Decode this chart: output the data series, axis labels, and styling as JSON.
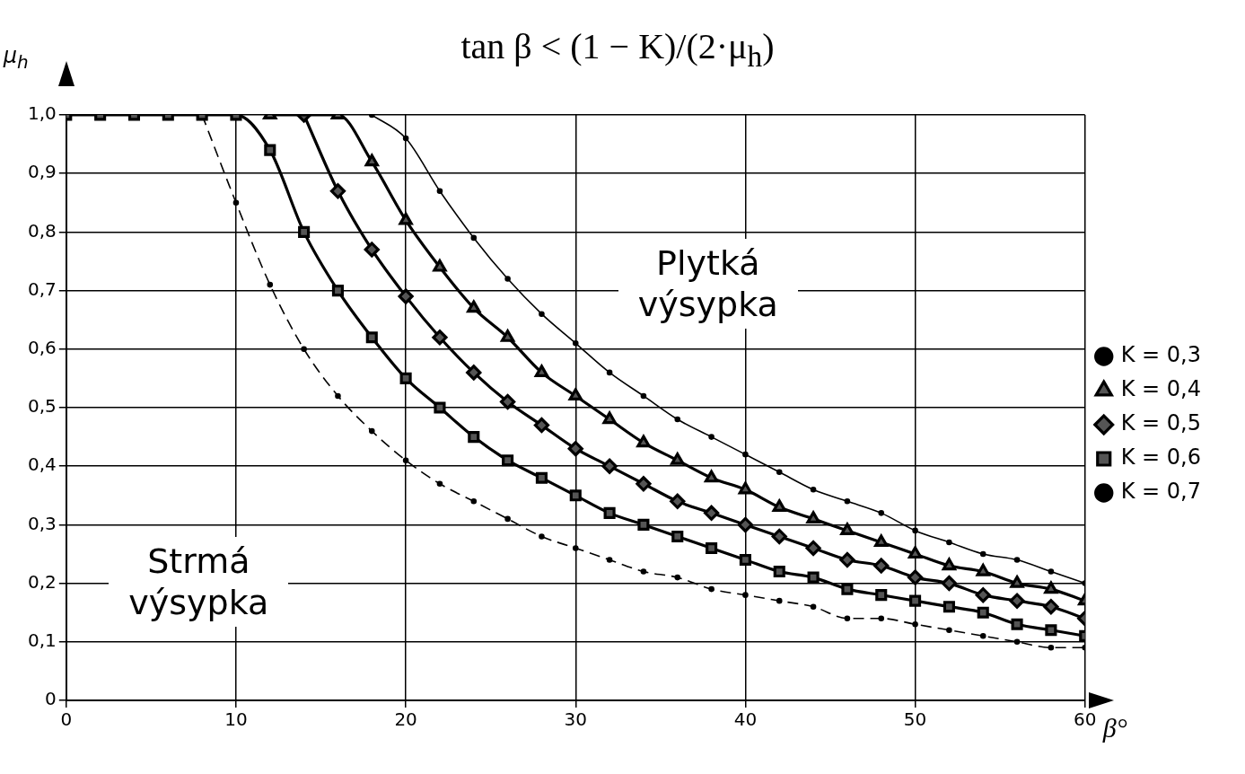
{
  "chart_data": {
    "type": "line",
    "title": "tan β < (1 − K)/(2·μ$_{h}$)",
    "xlabel": "β°",
    "ylabel": "μ$_{h}$",
    "x": [
      0,
      2,
      4,
      6,
      8,
      10,
      12,
      14,
      16,
      18,
      20,
      22,
      24,
      26,
      28,
      30,
      32,
      34,
      36,
      38,
      40,
      42,
      44,
      46,
      48,
      50,
      52,
      54,
      56,
      58,
      60
    ],
    "series": [
      {
        "name": "K = 0,3",
        "color": "#000000",
        "marker": "circle",
        "line_style": "solid",
        "values": [
          null,
          null,
          null,
          null,
          null,
          null,
          null,
          null,
          null,
          1.0,
          0.96,
          0.87,
          0.79,
          0.72,
          0.66,
          0.61,
          0.56,
          0.52,
          0.48,
          0.45,
          0.42,
          0.39,
          0.36,
          0.34,
          0.32,
          0.29,
          0.27,
          0.25,
          0.24,
          0.22,
          0.2
        ]
      },
      {
        "name": "K = 0,4",
        "color": "#000000",
        "marker": "triangle",
        "line_style": "solid",
        "values": [
          null,
          null,
          null,
          null,
          null,
          null,
          1.0,
          null,
          1.0,
          0.92,
          0.82,
          0.74,
          0.67,
          0.62,
          0.56,
          0.52,
          0.48,
          0.44,
          0.41,
          0.38,
          0.36,
          0.33,
          0.31,
          0.29,
          0.27,
          0.25,
          0.23,
          0.22,
          0.2,
          0.19,
          0.17
        ]
      },
      {
        "name": "K = 0,5",
        "color": "#000000",
        "marker": "diamond",
        "line_style": "solid",
        "values": [
          null,
          null,
          null,
          null,
          null,
          null,
          null,
          1.0,
          0.87,
          0.77,
          0.69,
          0.62,
          0.56,
          0.51,
          0.47,
          0.43,
          0.4,
          0.37,
          0.34,
          0.32,
          0.3,
          0.28,
          0.26,
          0.24,
          0.23,
          0.21,
          0.2,
          0.18,
          0.17,
          0.16,
          0.14
        ]
      },
      {
        "name": "K = 0,6",
        "color": "#000000",
        "marker": "square",
        "line_style": "solid",
        "values": [
          1.0,
          1.0,
          1.0,
          1.0,
          1.0,
          1.0,
          0.94,
          0.8,
          0.7,
          0.62,
          0.55,
          0.5,
          0.45,
          0.41,
          0.38,
          0.35,
          0.32,
          0.3,
          0.28,
          0.26,
          0.24,
          0.22,
          0.21,
          0.19,
          0.18,
          0.17,
          0.16,
          0.15,
          0.13,
          0.12,
          0.11
        ]
      },
      {
        "name": "K = 0,7",
        "color": "#000000",
        "marker": "circle",
        "line_style": "dashed",
        "values": [
          null,
          null,
          null,
          null,
          1.0,
          0.85,
          0.71,
          0.6,
          0.52,
          0.46,
          0.41,
          0.37,
          0.34,
          0.31,
          0.28,
          0.26,
          0.24,
          0.22,
          0.21,
          0.19,
          0.18,
          0.17,
          0.16,
          0.14,
          0.14,
          0.13,
          0.12,
          0.11,
          0.1,
          0.09,
          0.09
        ]
      }
    ],
    "xlim": [
      0,
      60
    ],
    "xticks": [
      0,
      10,
      20,
      30,
      40,
      50,
      60
    ],
    "ylim": [
      0,
      1.0
    ],
    "yticks": [
      0,
      {
        "value": 0.1,
        "label": "0,1"
      },
      {
        "value": 0.2,
        "label": "0,2"
      },
      {
        "value": 0.3,
        "label": "0,3"
      },
      {
        "value": 0.4,
        "label": "0,4"
      },
      {
        "value": 0.5,
        "label": "0,5"
      },
      {
        "value": 0.6,
        "label": "0,6"
      },
      {
        "value": 0.7,
        "label": "0,7"
      },
      {
        "value": 0.8,
        "label": "0,8"
      },
      {
        "value": 0.9,
        "label": "0,9"
      },
      {
        "value": 1.0,
        "label": "1,0"
      }
    ],
    "grid": true,
    "legend": "right",
    "annotations": [
      "Plytká výsypka",
      "Strmá výsypka"
    ]
  }
}
